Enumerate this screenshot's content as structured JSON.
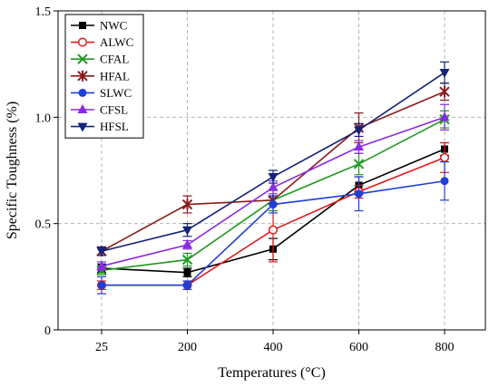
{
  "chart_data": {
    "type": "line",
    "title": "",
    "xlabel": "Temperatures (°C)",
    "ylabel": "Specific Toughness (%)",
    "categories": [
      "25",
      "200",
      "400",
      "600",
      "800"
    ],
    "ylim": [
      0,
      1.5
    ],
    "yticks": [
      "0",
      "0.5",
      "1.0",
      "1.5"
    ],
    "grid": true,
    "legend_position": "top-left",
    "series": [
      {
        "name": "NWC",
        "color": "#000000",
        "marker": "square-filled",
        "values": [
          0.29,
          0.27,
          0.38,
          0.68,
          0.85
        ],
        "errors": [
          0.02,
          0.02,
          0.05,
          0.04,
          0.03
        ]
      },
      {
        "name": "ALWC",
        "color": "#e31a1c",
        "marker": "circle-open",
        "values": [
          0.21,
          0.21,
          0.47,
          0.65,
          0.81
        ],
        "errors": [
          0.02,
          0.02,
          0.15,
          0.03,
          0.07
        ]
      },
      {
        "name": "CFAL",
        "color": "#1f9a1f",
        "marker": "x",
        "values": [
          0.28,
          0.33,
          0.61,
          0.78,
          0.99
        ],
        "errors": [
          0.02,
          0.03,
          0.05,
          0.05,
          0.04
        ]
      },
      {
        "name": "HFAL",
        "color": "#8b1a1a",
        "marker": "star",
        "values": [
          0.37,
          0.59,
          0.61,
          0.95,
          1.12
        ],
        "errors": [
          0.02,
          0.04,
          0.02,
          0.07,
          0.04
        ]
      },
      {
        "name": "SLWC",
        "color": "#1f3fd6",
        "marker": "circle-filled",
        "values": [
          0.21,
          0.21,
          0.59,
          0.64,
          0.7
        ],
        "errors": [
          0.04,
          0.02,
          0.04,
          0.08,
          0.09
        ]
      },
      {
        "name": "CFSL",
        "color": "#8a2be2",
        "marker": "triangle-up-filled",
        "values": [
          0.3,
          0.4,
          0.67,
          0.86,
          1.0
        ],
        "errors": [
          0.02,
          0.02,
          0.03,
          0.03,
          0.06
        ]
      },
      {
        "name": "HFSL",
        "color": "#14237a",
        "marker": "triangle-down-filled",
        "values": [
          0.37,
          0.47,
          0.72,
          0.94,
          1.21
        ],
        "errors": [
          0.02,
          0.03,
          0.03,
          0.03,
          0.05
        ]
      }
    ]
  }
}
